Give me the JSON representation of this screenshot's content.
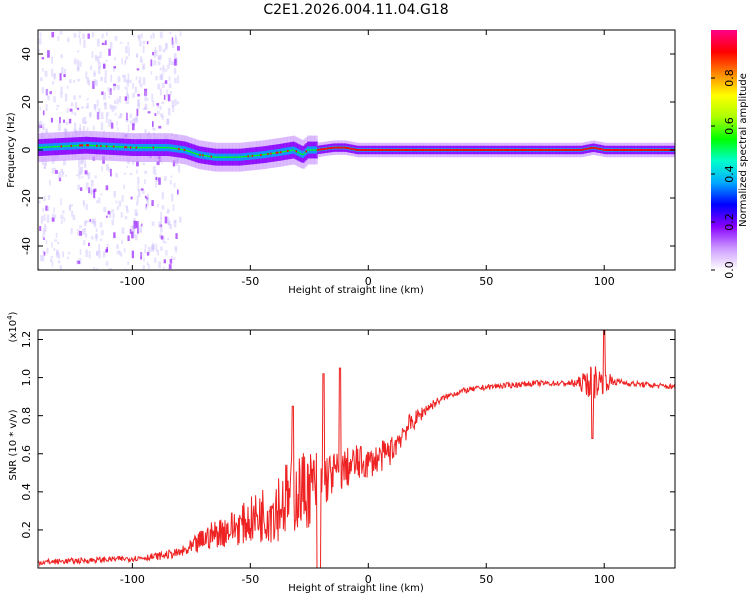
{
  "figure_title": "C2E1.2026.004.11.04.G18",
  "colors": {
    "snr_line": "#ee2222",
    "frame": "#000000",
    "spectral_low": "#cfbfff",
    "colorbar_stops": [
      "#ffffff",
      "#cc99ff",
      "#8800ff",
      "#0000ff",
      "#00aaff",
      "#00ffcc",
      "#00ff00",
      "#aaff00",
      "#ffff00",
      "#ff8800",
      "#ff0000",
      "#ff0088"
    ]
  },
  "chart_data": [
    {
      "type": "heatmap",
      "title": "C2E1.2026.004.11.04.G18",
      "xlabel": "Height of straight line (km)",
      "ylabel": "Frequency (Hz)",
      "xlim": [
        -140,
        130
      ],
      "ylim": [
        -50,
        50
      ],
      "x_ticks": [
        -100,
        -50,
        0,
        50,
        100
      ],
      "y_ticks": [
        -40,
        -20,
        0,
        20,
        40
      ],
      "x_tick_labels": [
        "-100",
        "-50",
        "0",
        "50",
        "100"
      ],
      "y_tick_labels": [
        "-40",
        "-20",
        "0",
        "20",
        "40"
      ],
      "ridge_frequency": {
        "x": [
          -140,
          -120,
          -100,
          -85,
          -78,
          -72,
          -65,
          -55,
          -45,
          -38,
          -32,
          -28,
          -26,
          -22,
          -15,
          -10,
          -5,
          0,
          50,
          90,
          95,
          100,
          130
        ],
        "y": [
          1,
          2,
          1,
          1,
          0,
          -2,
          -3,
          -3,
          -2,
          -1,
          0,
          -2,
          0,
          0,
          1,
          1,
          0,
          0,
          0,
          0,
          1,
          0,
          0
        ]
      },
      "colorbar": {
        "label": "Normalized spectral amplitude",
        "range": [
          0,
          1
        ],
        "ticks": [
          0.0,
          0.2,
          0.4,
          0.6,
          0.8
        ],
        "tick_labels": [
          "0.0",
          "0.2",
          "0.4",
          "0.6",
          "0.8"
        ]
      }
    },
    {
      "type": "line",
      "xlabel": "Height of straight line (km)",
      "ylabel": "SNR (10 * v/v)",
      "y_multiplier_label": "(x10",
      "y_multiplier_exponent": "4",
      "y_multiplier_close": ")",
      "xlim": [
        -140,
        130
      ],
      "ylim": [
        0,
        1.25
      ],
      "x_ticks": [
        -100,
        -50,
        0,
        50,
        100
      ],
      "y_ticks": [
        0.2,
        0.4,
        0.6,
        0.8,
        1.0,
        1.2
      ],
      "x_tick_labels": [
        "-100",
        "-50",
        "0",
        "50",
        "100"
      ],
      "y_tick_labels": [
        "0.2",
        "0.4",
        "0.6",
        "0.8",
        "1.0",
        "1.2"
      ],
      "series": [
        {
          "name": "SNR",
          "x": [
            -140,
            -120,
            -100,
            -90,
            -80,
            -75,
            -70,
            -65,
            -60,
            -55,
            -50,
            -45,
            -40,
            -35,
            -30,
            -25,
            -20,
            -15,
            -10,
            -5,
            0,
            5,
            10,
            15,
            20,
            25,
            30,
            35,
            40,
            50,
            60,
            70,
            80,
            85,
            90,
            95,
            100,
            105,
            110,
            120,
            130
          ],
          "values": [
            0.03,
            0.04,
            0.05,
            0.06,
            0.08,
            0.1,
            0.15,
            0.18,
            0.2,
            0.22,
            0.25,
            0.28,
            0.32,
            0.36,
            0.4,
            0.42,
            0.45,
            0.5,
            0.52,
            0.55,
            0.55,
            0.58,
            0.62,
            0.72,
            0.78,
            0.84,
            0.88,
            0.91,
            0.93,
            0.95,
            0.96,
            0.97,
            0.97,
            0.97,
            0.97,
            0.98,
            0.98,
            0.98,
            0.97,
            0.96,
            0.95
          ],
          "noise_amplitude": [
            0.03,
            0.03,
            0.03,
            0.04,
            0.05,
            0.1,
            0.13,
            0.15,
            0.18,
            0.2,
            0.24,
            0.3,
            0.38,
            0.4,
            0.42,
            0.42,
            0.35,
            0.22,
            0.22,
            0.2,
            0.16,
            0.16,
            0.15,
            0.14,
            0.09,
            0.06,
            0.04,
            0.03,
            0.03,
            0.03,
            0.03,
            0.03,
            0.03,
            0.03,
            0.08,
            0.2,
            0.12,
            0.04,
            0.03,
            0.03,
            0.03
          ],
          "spikes": [
            {
              "x": -32,
              "y": 0.85
            },
            {
              "x": -19,
              "y": 1.02
            },
            {
              "x": -12,
              "y": 1.05
            },
            {
              "x": 95,
              "y": 0.68
            },
            {
              "x": 100,
              "y": 1.25
            }
          ]
        }
      ]
    }
  ]
}
